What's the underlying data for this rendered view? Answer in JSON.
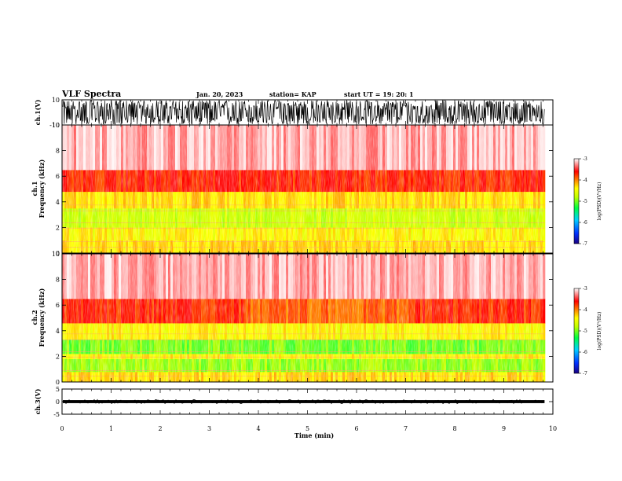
{
  "header": {
    "title": "VLF Spectra",
    "date": "Jan. 20, 2023",
    "station": "station= KAP",
    "start": "start  UT =   19: 20: 1"
  },
  "colors": {
    "spectrum_stops": [
      "#1a0080",
      "#0030ff",
      "#00d0ff",
      "#00ff40",
      "#c0ff00",
      "#ffff00",
      "#ff8000",
      "#ff0000",
      "#ffffff"
    ]
  },
  "chart_data": [
    {
      "type": "line",
      "id": "ch1-waveform",
      "ylabel": "ch.1(V)",
      "ylim": [
        -10,
        10
      ],
      "yticks": [
        "10",
        "-10"
      ],
      "description_values": {
        "typical_amplitude_range": [
          -6,
          10
        ]
      }
    },
    {
      "type": "heatmap",
      "id": "ch1-spectrogram",
      "ylabel_line1": "ch.1",
      "ylabel_line2": "Frequency (kHz)",
      "ylim": [
        0,
        10
      ],
      "yticks": [
        "0",
        "2",
        "4",
        "6",
        "8",
        "10"
      ],
      "colorbar": {
        "label": "log(PSD)(V²/Hz)",
        "range": [
          -7,
          -3
        ],
        "ticks": [
          "-3",
          "-4",
          "-5",
          "-6",
          "-7"
        ]
      },
      "bands_khz": [
        {
          "from": 0.0,
          "to": 1.0,
          "level": -4.3
        },
        {
          "from": 1.0,
          "to": 2.0,
          "level": -4.4
        },
        {
          "from": 2.0,
          "to": 3.5,
          "level": -4.7
        },
        {
          "from": 3.5,
          "to": 4.8,
          "level": -4.3
        },
        {
          "from": 4.8,
          "to": 6.5,
          "level": -3.7
        },
        {
          "from": 6.5,
          "to": 10.0,
          "level": -3.2
        }
      ]
    },
    {
      "type": "heatmap",
      "id": "ch2-spectrogram",
      "ylabel_line1": "ch.2",
      "ylabel_line2": "Frequency (kHz)",
      "ylim": [
        0,
        10
      ],
      "yticks": [
        "0",
        "2",
        "4",
        "6",
        "8",
        "10"
      ],
      "colorbar": {
        "label": "log(PSD)(V²/Hz)",
        "range": [
          -7,
          -3
        ],
        "ticks": [
          "-3",
          "-4",
          "-5",
          "-6",
          "-7"
        ]
      },
      "bands_khz": [
        {
          "from": 0.0,
          "to": 0.8,
          "level": -4.3
        },
        {
          "from": 0.8,
          "to": 1.8,
          "level": -4.9
        },
        {
          "from": 1.8,
          "to": 2.2,
          "level": -4.4
        },
        {
          "from": 2.2,
          "to": 3.3,
          "level": -5.0
        },
        {
          "from": 3.3,
          "to": 4.6,
          "level": -4.4
        },
        {
          "from": 4.6,
          "to": 6.5,
          "level": -3.7
        },
        {
          "from": 6.5,
          "to": 10.0,
          "level": -3.2
        }
      ]
    },
    {
      "type": "line",
      "id": "ch3-waveform",
      "ylabel": "ch.3(V)",
      "ylim": [
        -5,
        5
      ],
      "yticks": [
        "5",
        "0",
        "-5"
      ],
      "description_values": {
        "typical_amplitude_range": [
          -0.6,
          0.6
        ],
        "offset": 0
      }
    }
  ],
  "xaxis": {
    "label": "Time (min)",
    "xlim": [
      0,
      10
    ],
    "data_end": 9.83,
    "ticks": [
      "0",
      "1",
      "2",
      "3",
      "4",
      "5",
      "6",
      "7",
      "8",
      "9",
      "10"
    ]
  }
}
